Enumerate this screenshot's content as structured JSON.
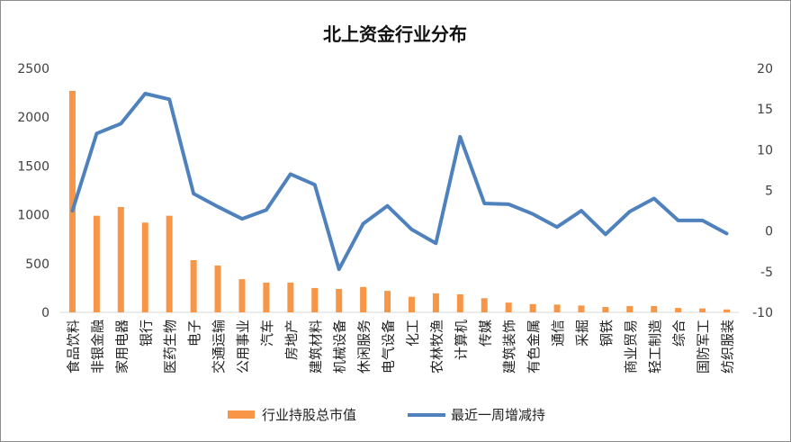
{
  "chart_data": {
    "type": "bar",
    "title": "北上资金行业分布",
    "categories": [
      "食品饮料",
      "非银金融",
      "家用电器",
      "银行",
      "医药生物",
      "电子",
      "交通运输",
      "公用事业",
      "汽车",
      "房地产",
      "建筑材料",
      "机械设备",
      "休闲服务",
      "电气设备",
      "化工",
      "农林牧渔",
      "计算机",
      "传媒",
      "建筑装饰",
      "有色金属",
      "通信",
      "采掘",
      "钢铁",
      "商业贸易",
      "轻工制造",
      "综合",
      "国防军工",
      "纺织服装"
    ],
    "series": [
      {
        "name": "行业持股总市值",
        "type": "bar",
        "axis": "left",
        "color": "#f79646",
        "values": [
          2270,
          990,
          1080,
          920,
          990,
          535,
          480,
          340,
          305,
          305,
          250,
          240,
          260,
          220,
          160,
          195,
          185,
          145,
          100,
          85,
          80,
          70,
          55,
          65,
          65,
          45,
          40,
          30
        ]
      },
      {
        "name": "最近一周增减持",
        "type": "line",
        "axis": "right",
        "color": "#4f81bd",
        "values": [
          2.5,
          12.0,
          13.2,
          16.9,
          16.2,
          4.6,
          3.0,
          1.5,
          2.6,
          7.0,
          5.7,
          -4.7,
          0.9,
          3.1,
          0.2,
          -1.5,
          11.6,
          3.4,
          3.3,
          2.1,
          0.5,
          2.5,
          -0.4,
          2.4,
          4.0,
          1.3,
          1.3,
          -0.3
        ]
      }
    ],
    "y_left": {
      "ylim": [
        0,
        2500
      ],
      "ticks": [
        0,
        500,
        1000,
        1500,
        2000,
        2500
      ]
    },
    "y_right": {
      "ylim": [
        -10,
        20
      ],
      "ticks": [
        -10,
        -5,
        0,
        5,
        10,
        15,
        20
      ]
    },
    "legend": "bottom",
    "grid": false
  }
}
